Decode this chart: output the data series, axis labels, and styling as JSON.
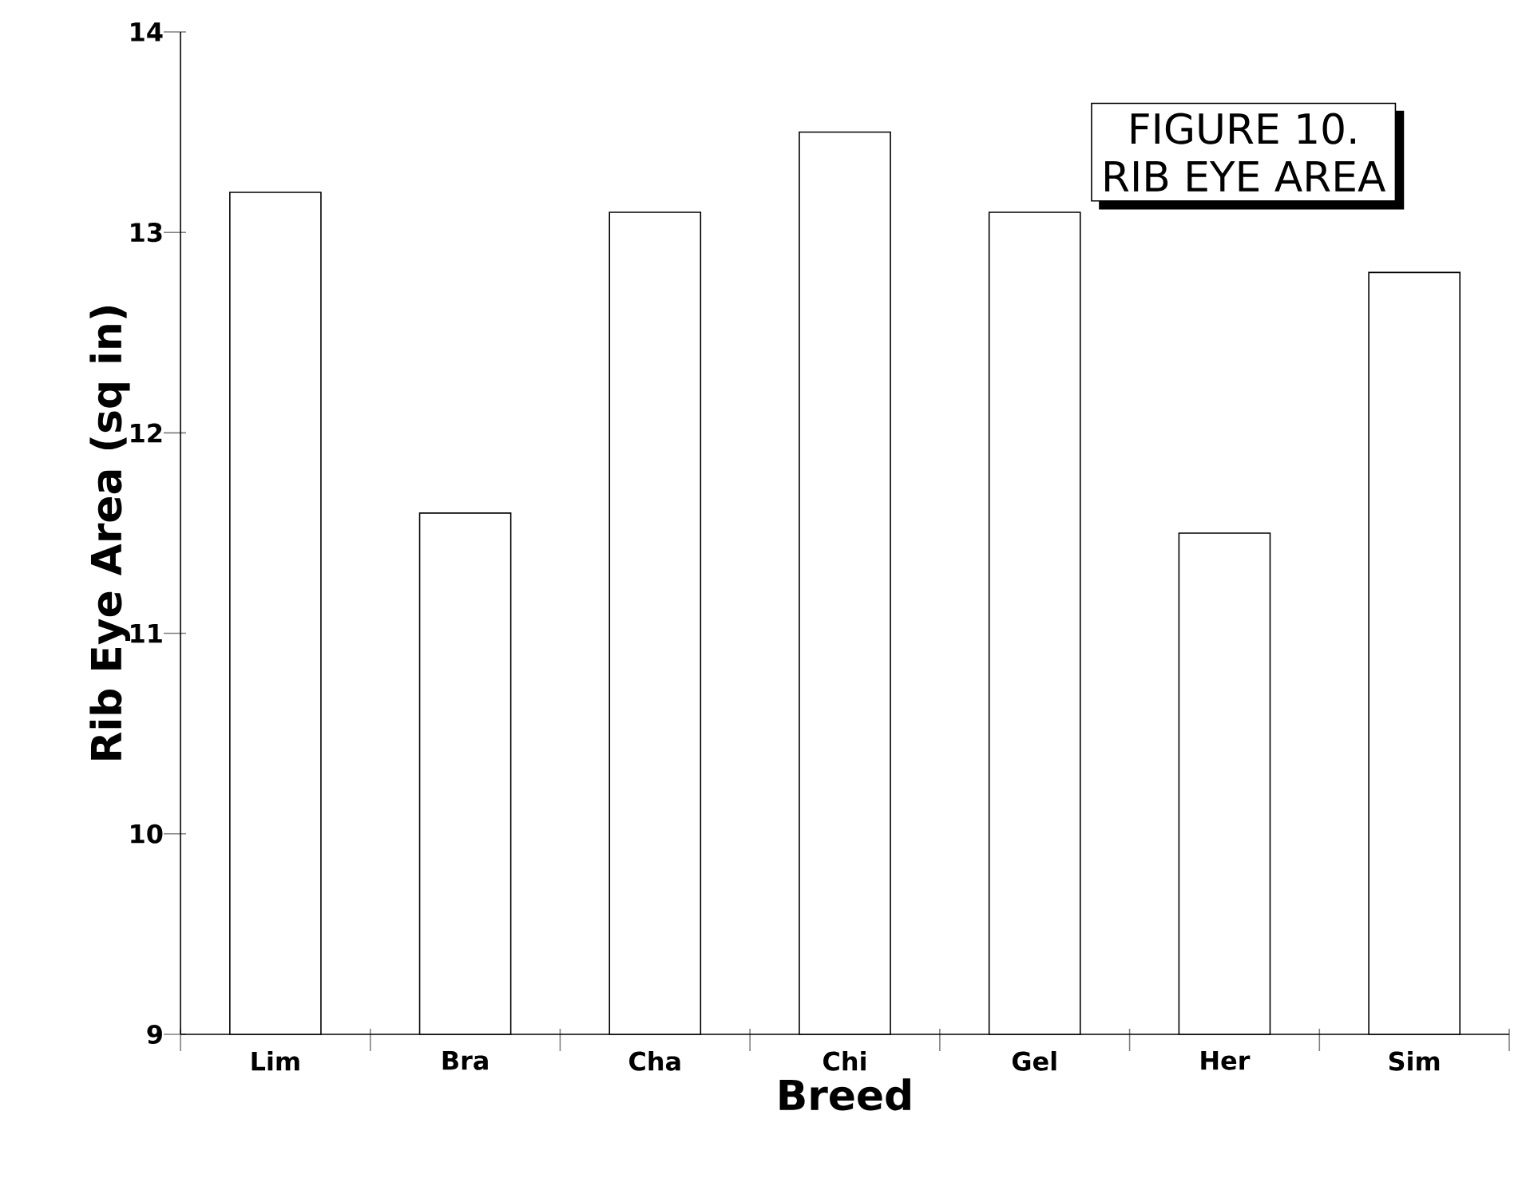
{
  "chart_data": {
    "type": "bar",
    "title": "FIGURE 10.",
    "subtitle": "RIB EYE AREA",
    "xlabel": "Breed",
    "ylabel": "Rib Eye Area (sq in)",
    "categories": [
      "Lim",
      "Bra",
      "Cha",
      "Chi",
      "Gel",
      "Her",
      "Sim"
    ],
    "values": [
      13.2,
      11.6,
      13.1,
      13.5,
      13.1,
      11.5,
      12.8
    ],
    "color": "#ffffff",
    "ylim": [
      9,
      14
    ],
    "yticks": [
      9,
      10,
      11,
      12,
      13,
      14
    ]
  }
}
